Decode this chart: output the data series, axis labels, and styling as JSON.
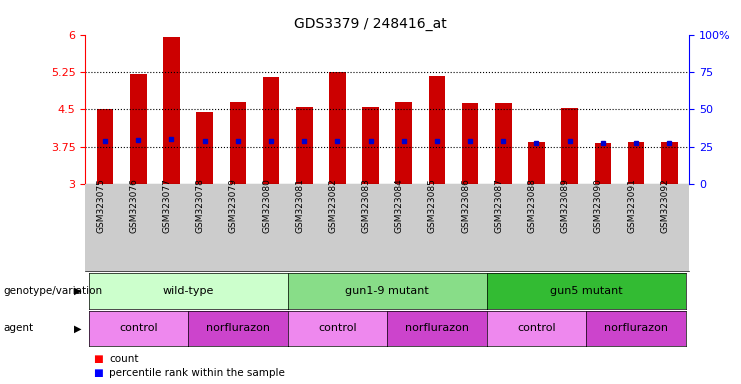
{
  "title": "GDS3379 / 248416_at",
  "samples": [
    "GSM323075",
    "GSM323076",
    "GSM323077",
    "GSM323078",
    "GSM323079",
    "GSM323080",
    "GSM323081",
    "GSM323082",
    "GSM323083",
    "GSM323084",
    "GSM323085",
    "GSM323086",
    "GSM323087",
    "GSM323088",
    "GSM323089",
    "GSM323090",
    "GSM323091",
    "GSM323092"
  ],
  "bar_values": [
    4.5,
    5.2,
    5.95,
    4.45,
    4.65,
    5.15,
    4.55,
    5.25,
    4.55,
    4.65,
    5.17,
    4.62,
    4.62,
    3.85,
    4.52,
    3.82,
    3.85,
    3.85
  ],
  "blue_dot_values": [
    3.87,
    3.88,
    3.9,
    3.86,
    3.87,
    3.87,
    3.87,
    3.87,
    3.87,
    3.87,
    3.87,
    3.87,
    3.87,
    3.82,
    3.87,
    3.82,
    3.82,
    3.82
  ],
  "ylim": [
    3.0,
    6.0
  ],
  "yticks_left": [
    3.0,
    3.75,
    4.5,
    5.25,
    6.0
  ],
  "ytick_labels_left": [
    "3",
    "3.75",
    "4.5",
    "5.25",
    "6"
  ],
  "yticks_right": [
    0,
    25,
    50,
    75,
    100
  ],
  "ytick_labels_right": [
    "0",
    "25",
    "50",
    "75",
    "100%"
  ],
  "bar_color": "#cc0000",
  "dot_color": "#0000cc",
  "bar_width": 0.5,
  "genotype_groups": [
    {
      "label": "wild-type",
      "start": 0,
      "end": 5,
      "color": "#ccffcc"
    },
    {
      "label": "gun1-9 mutant",
      "start": 6,
      "end": 11,
      "color": "#88dd88"
    },
    {
      "label": "gun5 mutant",
      "start": 12,
      "end": 17,
      "color": "#33bb33"
    }
  ],
  "agent_groups": [
    {
      "label": "control",
      "start": 0,
      "end": 2,
      "color": "#ee88ee"
    },
    {
      "label": "norflurazon",
      "start": 3,
      "end": 5,
      "color": "#cc44cc"
    },
    {
      "label": "control",
      "start": 6,
      "end": 8,
      "color": "#ee88ee"
    },
    {
      "label": "norflurazon",
      "start": 9,
      "end": 11,
      "color": "#cc44cc"
    },
    {
      "label": "control",
      "start": 12,
      "end": 14,
      "color": "#ee88ee"
    },
    {
      "label": "norflurazon",
      "start": 15,
      "end": 17,
      "color": "#cc44cc"
    }
  ],
  "genotype_row_label": "genotype/variation",
  "agent_row_label": "agent",
  "legend_count_label": "count",
  "legend_pct_label": "percentile rank within the sample",
  "xtick_bg": "#cccccc"
}
